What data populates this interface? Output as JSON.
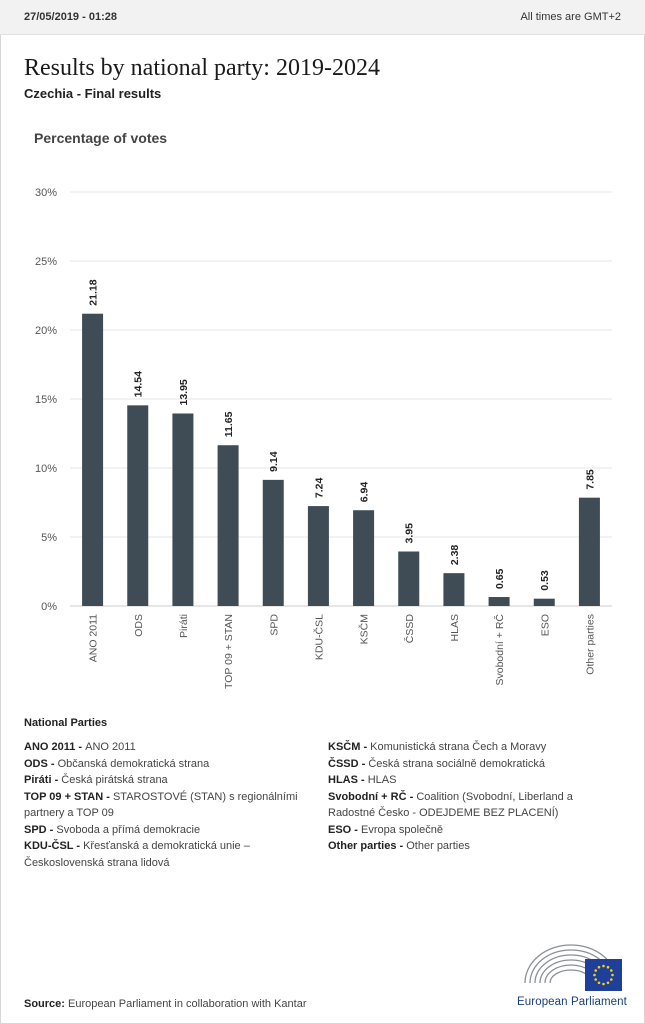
{
  "header": {
    "date": "27/05/2019 - 01:28",
    "timezone": "All times are GMT+2"
  },
  "title": "Results by national party: 2019-2024",
  "subtitle": "Czechia - Final results",
  "colors": {
    "bar": "#3f4b55",
    "grid": "#e5e5e5",
    "axis": "#cccccc"
  },
  "chart_data": {
    "type": "bar",
    "ylabel": "Percentage of votes",
    "ylim": [
      0,
      30
    ],
    "yticks": [
      0,
      5,
      10,
      15,
      20,
      25,
      30
    ],
    "ytick_labels": [
      "0%",
      "5%",
      "10%",
      "15%",
      "20%",
      "25%",
      "30%"
    ],
    "grid": true,
    "categories": [
      "ANO 2011",
      "ODS",
      "Piráti",
      "TOP 09 + STAN",
      "SPD",
      "KDU-ČSL",
      "KSČM",
      "ČSSD",
      "HLAS",
      "Svobodní + RČ",
      "ESO",
      "Other parties"
    ],
    "values": [
      21.18,
      14.54,
      13.95,
      11.65,
      9.14,
      7.24,
      6.94,
      3.95,
      2.38,
      0.65,
      0.53,
      7.85
    ],
    "value_labels": [
      "21.18",
      "14.54",
      "13.95",
      "11.65",
      "9.14",
      "7.24",
      "6.94",
      "3.95",
      "2.38",
      "0.65",
      "0.53",
      "7.85"
    ]
  },
  "legend": {
    "title": "National Parties",
    "left": [
      {
        "abbr": "ANO 2011 - ",
        "name": "ANO 2011"
      },
      {
        "abbr": "ODS - ",
        "name": "Občanská demokratická strana"
      },
      {
        "abbr": "Piráti - ",
        "name": "Česká pirátská strana"
      },
      {
        "abbr": "TOP 09 + STAN - ",
        "name": "STAROSTOVÉ (STAN) s regionálními partnery a TOP 09"
      },
      {
        "abbr": "SPD - ",
        "name": "Svoboda a přímá demokracie"
      },
      {
        "abbr": "KDU-ČSL - ",
        "name": "Křesťanská a demokratická unie – Československá strana lidová"
      }
    ],
    "right": [
      {
        "abbr": "KSČM - ",
        "name": "Komunistická strana Čech a Moravy"
      },
      {
        "abbr": "ČSSD - ",
        "name": "Česká strana sociálně demokratická"
      },
      {
        "abbr": "HLAS - ",
        "name": "HLAS"
      },
      {
        "abbr": "Svobodní + RČ - ",
        "name": "Coalition (Svobodní, Liberland a Radostné Česko - ODEJDEME BEZ PLACENÍ)"
      },
      {
        "abbr": "ESO - ",
        "name": "Evropa společně"
      },
      {
        "abbr": "Other parties - ",
        "name": "Other parties"
      }
    ]
  },
  "source": {
    "label": "Source:",
    "text": " European Parliament in collaboration with Kantar"
  },
  "logo": {
    "text": "European Parliament",
    "icon": "european-parliament-logo-icon"
  }
}
